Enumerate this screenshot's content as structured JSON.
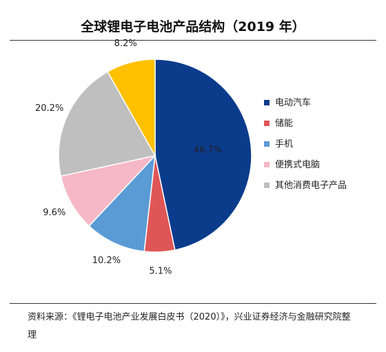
{
  "chart_data": {
    "type": "pie",
    "title": "全球锂电子电池产品结构（2019 年）",
    "categories": [
      "电动汽车",
      "储能",
      "手机",
      "便携式电脑",
      "其他消费电子产品",
      null
    ],
    "values": [
      46.7,
      5.1,
      10.2,
      9.6,
      20.2,
      8.2
    ],
    "value_labels": [
      "46.7%",
      "5.1%",
      "10.2%",
      "9.6%",
      "20.2%",
      "8.2%"
    ],
    "colors": [
      "#0b3c8c",
      "#e05656",
      "#5b9bd5",
      "#f6b8c6",
      "#bfbfbf",
      "#ffc000"
    ],
    "legend": "right"
  },
  "source": "资料来源：《锂电子电池产业发展白皮书（2020）》，兴业证券经济与金融研究院整理"
}
